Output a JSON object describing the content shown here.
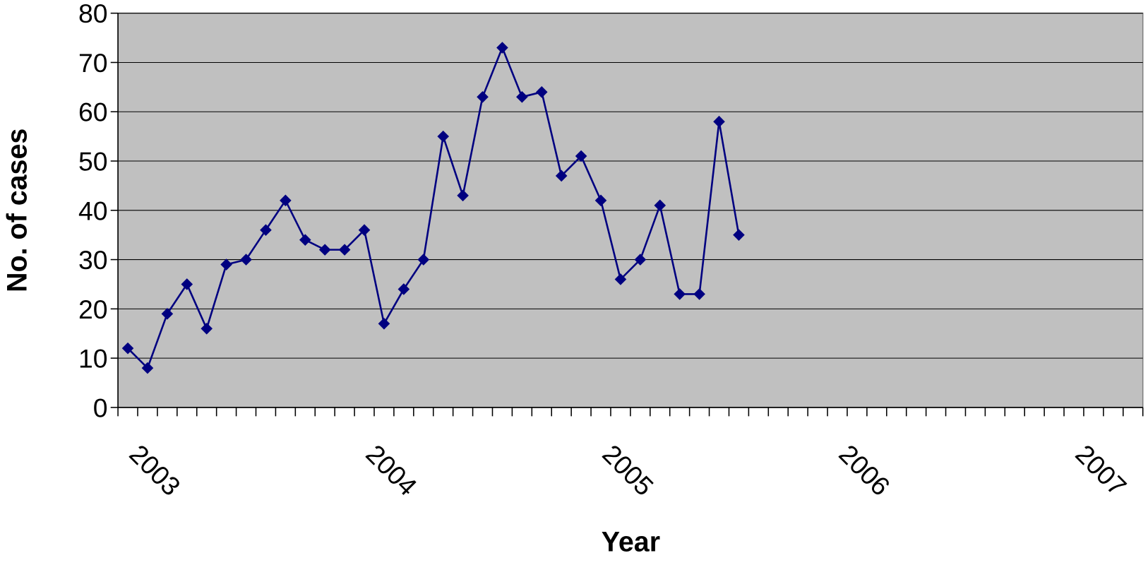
{
  "chart_data": {
    "type": "line",
    "xlabel": "Year",
    "ylabel": "No. of cases",
    "categories": [
      "2003",
      null,
      null,
      null,
      null,
      null,
      null,
      null,
      null,
      null,
      null,
      null,
      "2004",
      null,
      null,
      null,
      null,
      null,
      null,
      null,
      null,
      null,
      null,
      null,
      "2005",
      null,
      null,
      null,
      null,
      null,
      null,
      null,
      null,
      null,
      null,
      null,
      "2006",
      null,
      null,
      null,
      null,
      null,
      null,
      null,
      null,
      null,
      null,
      null,
      "2007",
      null,
      null,
      null
    ],
    "series": [
      {
        "name": "cases",
        "color": "#000080",
        "values": [
          12,
          8,
          19,
          25,
          16,
          29,
          30,
          36,
          42,
          34,
          32,
          32,
          36,
          17,
          24,
          30,
          55,
          43,
          63,
          73,
          63,
          64,
          47,
          51,
          42,
          26,
          30,
          41,
          23,
          23,
          58,
          35,
          null,
          null,
          null,
          null,
          null,
          null,
          null,
          null,
          null,
          null,
          null,
          null,
          null,
          null,
          null,
          null,
          null,
          null,
          null,
          null
        ]
      }
    ],
    "ylim": [
      0,
      80
    ],
    "yticks": [
      0,
      10,
      20,
      30,
      40,
      50,
      60,
      70,
      80
    ],
    "grid": true,
    "plot_background": "#c0c0c0"
  }
}
